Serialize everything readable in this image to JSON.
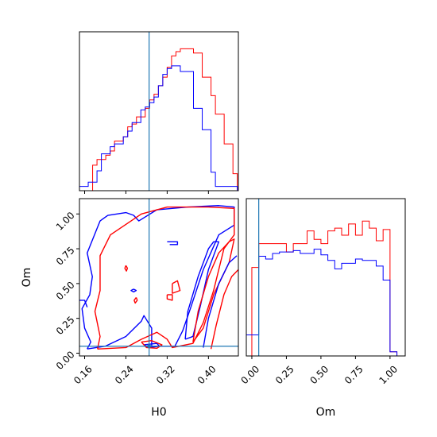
{
  "chart_data": {
    "type": "corner",
    "parameters": [
      "H0",
      "Om"
    ],
    "truth": {
      "H0": 0.285,
      "Om": 0.05
    },
    "colors": {
      "series_a": "#ff0000",
      "series_b": "#0000ff",
      "truth": "#1f77b4"
    },
    "panels": [
      {
        "id": "hist_H0",
        "type": "histogram",
        "xlim": [
          0.15,
          0.458
        ],
        "ylim": [
          0,
          1.12
        ],
        "x_ticks": [
          0.16,
          0.24,
          0.32,
          0.4
        ],
        "show_tick_labels": false,
        "bin_edges": [
          0.15,
          0.1585,
          0.167,
          0.1755,
          0.184,
          0.1925,
          0.201,
          0.2095,
          0.218,
          0.2265,
          0.235,
          0.2435,
          0.252,
          0.2605,
          0.269,
          0.2775,
          0.286,
          0.2945,
          0.303,
          0.3115,
          0.32,
          0.3285,
          0.337,
          0.3455,
          0.354,
          0.3625,
          0.371,
          0.3795,
          0.388,
          0.3965,
          0.405,
          0.4135,
          0.422,
          0.4305,
          0.439,
          0.4475,
          0.456
        ],
        "series": [
          {
            "color": "red",
            "values": [
              0,
              0,
              0,
              0.18,
              0.22,
              0.22,
              0.25,
              0.28,
              0.35,
              0.35,
              0.38,
              0.45,
              0.47,
              0.52,
              0.52,
              0.58,
              0.64,
              0.68,
              0.74,
              0.8,
              0.87,
              0.95,
              0.98,
              1.0,
              1.0,
              1.0,
              0.97,
              0.97,
              0.8,
              0.8,
              0.67,
              0.54,
              0.54,
              0.33,
              0.33,
              0.12
            ]
          },
          {
            "color": "blue",
            "values": [
              0.03,
              0.03,
              0.06,
              0.06,
              0.14,
              0.26,
              0.26,
              0.31,
              0.33,
              0.33,
              0.38,
              0.42,
              0.48,
              0.48,
              0.57,
              0.59,
              0.62,
              0.66,
              0.74,
              0.82,
              0.86,
              0.88,
              0.88,
              0.84,
              0.84,
              0.84,
              0.58,
              0.58,
              0.43,
              0.43,
              0.13,
              0.03,
              0.03,
              0.03,
              0.03,
              0.03
            ]
          }
        ]
      },
      {
        "id": "joint_H0_Om",
        "type": "contour",
        "xlabel": "H0",
        "ylabel": "Om",
        "xlim": [
          0.15,
          0.458
        ],
        "ylim": [
          -0.02,
          1.11
        ],
        "x_ticks": [
          0.16,
          0.24,
          0.32,
          0.4
        ],
        "x_tick_labels": [
          "0.16",
          "0.24",
          "0.32",
          "0.40"
        ],
        "y_ticks": [
          0.0,
          0.25,
          0.5,
          0.75,
          1.0
        ],
        "y_tick_labels": [
          "0.00",
          "0.25",
          "0.50",
          "0.75",
          "1.00"
        ],
        "contours": [
          {
            "color": "blue",
            "points": [
              [
                0.165,
                0.03
              ],
              [
                0.172,
                0.08
              ],
              [
                0.16,
                0.18
              ],
              [
                0.155,
                0.32
              ],
              [
                0.17,
                0.42
              ],
              [
                0.175,
                0.55
              ],
              [
                0.165,
                0.72
              ],
              [
                0.19,
                0.95
              ],
              [
                0.205,
                0.99
              ],
              [
                0.24,
                1.01
              ],
              [
                0.255,
                0.99
              ],
              [
                0.265,
                0.95
              ],
              [
                0.3,
                1.03
              ],
              [
                0.36,
                1.05
              ],
              [
                0.42,
                1.06
              ],
              [
                0.45,
                1.05
              ],
              [
                0.45,
                0.92
              ],
              [
                0.42,
                0.85
              ],
              [
                0.39,
                0.6
              ],
              [
                0.365,
                0.32
              ],
              [
                0.35,
                0.16
              ],
              [
                0.335,
                0.05
              ],
              [
                0.29,
                0.05
              ],
              [
                0.29,
                0.18
              ],
              [
                0.275,
                0.27
              ],
              [
                0.27,
                0.23
              ],
              [
                0.24,
                0.12
              ],
              [
                0.2,
                0.05
              ],
              [
                0.165,
                0.03
              ]
            ]
          },
          {
            "color": "red",
            "points": [
              [
                0.185,
                0.03
              ],
              [
                0.19,
                0.12
              ],
              [
                0.18,
                0.3
              ],
              [
                0.19,
                0.45
              ],
              [
                0.19,
                0.7
              ],
              [
                0.21,
                0.85
              ],
              [
                0.25,
                0.95
              ],
              [
                0.27,
                1.0
              ],
              [
                0.32,
                1.05
              ],
              [
                0.4,
                1.05
              ],
              [
                0.45,
                1.04
              ],
              [
                0.45,
                0.85
              ],
              [
                0.43,
                0.75
              ],
              [
                0.41,
                0.45
              ],
              [
                0.39,
                0.22
              ],
              [
                0.37,
                0.07
              ],
              [
                0.33,
                0.04
              ],
              [
                0.32,
                0.1
              ],
              [
                0.3,
                0.15
              ],
              [
                0.27,
                0.1
              ],
              [
                0.24,
                0.04
              ],
              [
                0.185,
                0.03
              ]
            ]
          },
          {
            "color": "blue",
            "points": [
              [
                0.355,
                0.1
              ],
              [
                0.36,
                0.3
              ],
              [
                0.38,
                0.55
              ],
              [
                0.4,
                0.75
              ],
              [
                0.41,
                0.8
              ],
              [
                0.42,
                0.8
              ],
              [
                0.4,
                0.6
              ],
              [
                0.385,
                0.35
              ],
              [
                0.37,
                0.12
              ],
              [
                0.355,
                0.1
              ]
            ]
          },
          {
            "color": "red",
            "points": [
              [
                0.37,
                0.08
              ],
              [
                0.38,
                0.3
              ],
              [
                0.4,
                0.55
              ],
              [
                0.42,
                0.72
              ],
              [
                0.44,
                0.8
              ],
              [
                0.45,
                0.82
              ],
              [
                0.44,
                0.65
              ],
              [
                0.41,
                0.42
              ],
              [
                0.39,
                0.18
              ],
              [
                0.37,
                0.08
              ]
            ]
          },
          {
            "color": "blue",
            "points": [
              [
                0.39,
                0.04
              ],
              [
                0.4,
                0.25
              ],
              [
                0.42,
                0.5
              ],
              [
                0.44,
                0.65
              ],
              [
                0.455,
                0.7
              ]
            ]
          },
          {
            "color": "red",
            "points": [
              [
                0.405,
                0.03
              ],
              [
                0.415,
                0.2
              ],
              [
                0.43,
                0.42
              ],
              [
                0.445,
                0.55
              ],
              [
                0.458,
                0.6
              ]
            ]
          },
          {
            "color": "blue",
            "points": [
              [
                0.115,
                0.38
              ],
              [
                0.16,
                0.38
              ],
              [
                0.165,
                0.33
              ]
            ]
          },
          {
            "color": "red",
            "points": [
              [
                0.24,
                0.63
              ],
              [
                0.243,
                0.61
              ],
              [
                0.241,
                0.59
              ],
              [
                0.238,
                0.61
              ],
              [
                0.24,
                0.63
              ]
            ]
          },
          {
            "color": "blue",
            "points": [
              [
                0.255,
                0.46
              ],
              [
                0.26,
                0.45
              ],
              [
                0.255,
                0.44
              ],
              [
                0.25,
                0.45
              ],
              [
                0.255,
                0.46
              ]
            ]
          },
          {
            "color": "red",
            "points": [
              [
                0.26,
                0.4
              ],
              [
                0.262,
                0.38
              ],
              [
                0.258,
                0.36
              ],
              [
                0.256,
                0.38
              ],
              [
                0.26,
                0.4
              ]
            ]
          },
          {
            "color": "blue",
            "points": [
              [
                0.275,
                0.06
              ],
              [
                0.3,
                0.07
              ],
              [
                0.305,
                0.05
              ],
              [
                0.285,
                0.04
              ],
              [
                0.275,
                0.06
              ]
            ]
          },
          {
            "color": "red",
            "points": [
              [
                0.27,
                0.08
              ],
              [
                0.29,
                0.09
              ],
              [
                0.31,
                0.06
              ],
              [
                0.3,
                0.035
              ],
              [
                0.28,
                0.04
              ],
              [
                0.27,
                0.08
              ]
            ]
          },
          {
            "color": "blue",
            "points": [
              [
                0.32,
                0.8
              ],
              [
                0.34,
                0.8
              ],
              [
                0.34,
                0.78
              ],
              [
                0.325,
                0.78
              ]
            ]
          },
          {
            "color": "red",
            "points": [
              [
                0.33,
                0.5
              ],
              [
                0.34,
                0.52
              ],
              [
                0.345,
                0.45
              ],
              [
                0.33,
                0.43
              ],
              [
                0.33,
                0.5
              ]
            ]
          },
          {
            "color": "red",
            "points": [
              [
                0.32,
                0.42
              ],
              [
                0.33,
                0.42
              ],
              [
                0.33,
                0.38
              ],
              [
                0.32,
                0.39
              ],
              [
                0.32,
                0.42
              ]
            ]
          }
        ]
      },
      {
        "id": "hist_Om",
        "type": "histogram",
        "xlabel": "Om",
        "xlim": [
          -0.04,
          1.11
        ],
        "ylim": [
          0,
          1.12
        ],
        "x_ticks": [
          0.0,
          0.25,
          0.5,
          0.75,
          1.0
        ],
        "x_tick_labels": [
          "0.00",
          "0.25",
          "0.50",
          "0.75",
          "1.00"
        ],
        "bin_edges": [
          -0.04,
          0.0,
          0.05,
          0.1,
          0.15,
          0.2,
          0.25,
          0.3,
          0.35,
          0.4,
          0.45,
          0.5,
          0.55,
          0.6,
          0.65,
          0.7,
          0.75,
          0.8,
          0.85,
          0.9,
          0.95,
          1.0,
          1.05,
          1.11
        ],
        "series": [
          {
            "color": "red",
            "values": [
              0,
              0.63,
              0.8,
              0.8,
              0.8,
              0.8,
              0.74,
              0.8,
              0.8,
              0.89,
              0.83,
              0.8,
              0.89,
              0.91,
              0.86,
              0.94,
              0.86,
              0.96,
              0.91,
              0.82,
              0.9,
              0.03,
              0
            ]
          },
          {
            "color": "blue",
            "values": [
              0.15,
              0.15,
              0.71,
              0.69,
              0.73,
              0.74,
              0.74,
              0.75,
              0.73,
              0.73,
              0.76,
              0.72,
              0.68,
              0.62,
              0.66,
              0.66,
              0.69,
              0.68,
              0.68,
              0.64,
              0.54,
              0.03,
              0
            ]
          }
        ]
      }
    ]
  }
}
